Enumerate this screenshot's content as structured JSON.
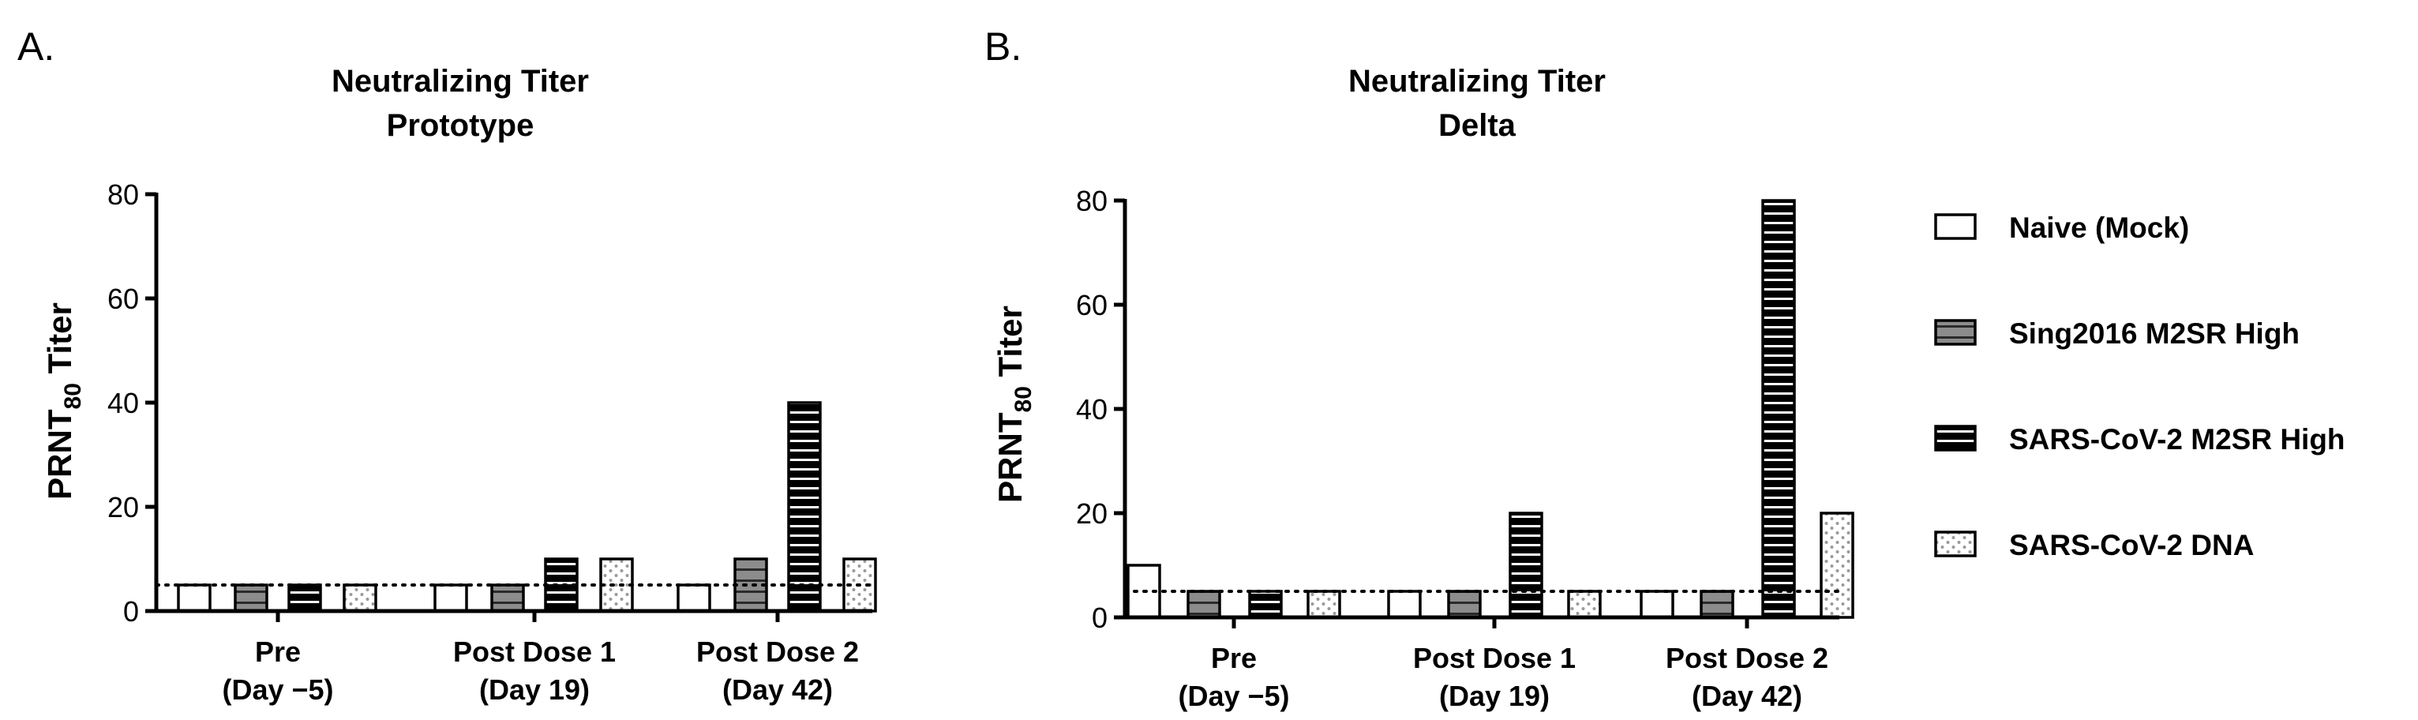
{
  "chart_data": [
    {
      "panel_label": "A.",
      "type": "bar",
      "title": [
        "Neutralizing Titer",
        "Prototype"
      ],
      "ylabel": {
        "main": "PRNT",
        "sub": "80",
        "suffix": " Titer"
      },
      "ylim": [
        0,
        80
      ],
      "yticks": [
        "0",
        "20",
        "40",
        "60",
        "80"
      ],
      "categories": [
        [
          "Pre",
          "(Day −5)"
        ],
        [
          "Post Dose 1",
          "(Day 19)"
        ],
        [
          "Post Dose 2",
          "(Day 42)"
        ]
      ],
      "limit_of_detection": 5,
      "series": [
        {
          "name": "Naive (Mock)",
          "values": [
            5,
            5,
            5
          ]
        },
        {
          "name": "Sing2016 M2SR High",
          "values": [
            5,
            5,
            10
          ]
        },
        {
          "name": "SARS-CoV-2 M2SR High",
          "values": [
            5,
            10,
            40
          ]
        },
        {
          "name": "SARS-CoV-2 DNA",
          "values": [
            5,
            10,
            10
          ]
        }
      ]
    },
    {
      "panel_label": "B.",
      "type": "bar",
      "title": [
        "Neutralizing Titer",
        "Delta"
      ],
      "ylabel": {
        "main": "PRNT",
        "sub": "80",
        "suffix": " Titer"
      },
      "ylim": [
        0,
        80
      ],
      "yticks": [
        "0",
        "20",
        "40",
        "60",
        "80"
      ],
      "categories": [
        [
          "Pre",
          "(Day −5)"
        ],
        [
          "Post Dose 1",
          "(Day 19)"
        ],
        [
          "Post Dose 2",
          "(Day 42)"
        ]
      ],
      "limit_of_detection": 5,
      "series": [
        {
          "name": "Naive (Mock)",
          "values": [
            10,
            5,
            5
          ]
        },
        {
          "name": "Sing2016 M2SR High",
          "values": [
            5,
            5,
            5
          ]
        },
        {
          "name": "SARS-CoV-2 M2SR High",
          "values": [
            5,
            20,
            80
          ]
        },
        {
          "name": "SARS-CoV-2 DNA",
          "values": [
            5,
            5,
            20
          ]
        }
      ]
    }
  ],
  "legend": {
    "items": [
      {
        "label": "Naive (Mock)",
        "pattern": "white"
      },
      {
        "label": "Sing2016 M2SR High",
        "pattern": "gray-hlines"
      },
      {
        "label": "SARS-CoV-2 M2SR High",
        "pattern": "black-hlines"
      },
      {
        "label": "SARS-CoV-2 DNA",
        "pattern": "dots"
      }
    ]
  },
  "colors": {
    "axis": "#000000",
    "gray_fill": "#8c8c8c",
    "white_fill": "#ffffff",
    "black_fill": "#000000",
    "dot_fill": "#b8b8b8"
  }
}
